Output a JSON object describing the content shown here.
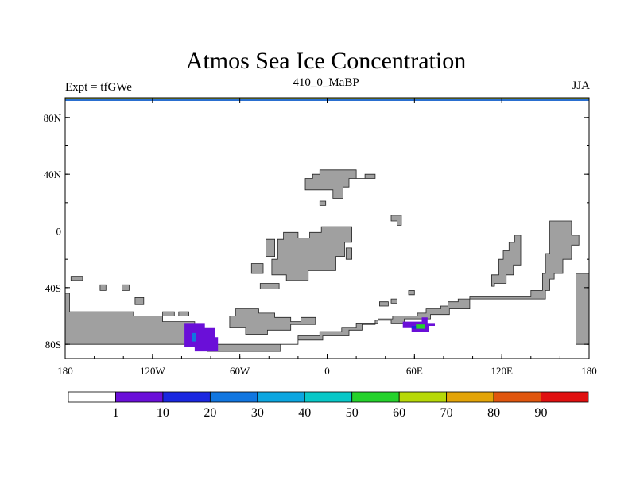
{
  "chart_data": {
    "type": "heatmap",
    "title": "Atmos Sea Ice Concentration",
    "left_label": "Expt = tfGWe",
    "center_label": "410_0_MaBP",
    "right_label": "JJA",
    "x_axis": {
      "range": [
        -180,
        180
      ],
      "ticks": [
        {
          "value": -180,
          "label": "180"
        },
        {
          "value": -120,
          "label": "120W"
        },
        {
          "value": -60,
          "label": "60W"
        },
        {
          "value": 0,
          "label": "0"
        },
        {
          "value": 60,
          "label": "60E"
        },
        {
          "value": 120,
          "label": "120E"
        },
        {
          "value": 180,
          "label": "180"
        }
      ]
    },
    "y_axis": {
      "range": [
        -90,
        90
      ],
      "ticks": [
        {
          "value": 80,
          "label": "80N"
        },
        {
          "value": 40,
          "label": "40N"
        },
        {
          "value": 0,
          "label": "0"
        },
        {
          "value": -40,
          "label": "40S"
        },
        {
          "value": -80,
          "label": "80S"
        }
      ]
    },
    "land_color": "#a0a0a0",
    "land": [
      {
        "name": "south-landmass",
        "coords": [
          [
            -180,
            -44
          ],
          [
            -177,
            -44
          ],
          [
            -177,
            -57
          ],
          [
            -133,
            -57
          ],
          [
            -133,
            -60
          ],
          [
            -113,
            -60
          ],
          [
            -113,
            -64
          ],
          [
            -91,
            -64
          ],
          [
            -91,
            -82
          ],
          [
            -82,
            -82
          ],
          [
            -82,
            -85
          ],
          [
            -32,
            -85
          ],
          [
            -32,
            -80
          ],
          [
            -20,
            -80
          ],
          [
            -20,
            -77
          ],
          [
            -3,
            -77
          ],
          [
            -3,
            -74
          ],
          [
            15,
            -74
          ],
          [
            15,
            -70
          ],
          [
            24,
            -70
          ],
          [
            24,
            -66
          ],
          [
            33,
            -66
          ],
          [
            33,
            -63
          ],
          [
            44,
            -63
          ],
          [
            44,
            -65
          ],
          [
            53,
            -65
          ],
          [
            53,
            -62
          ],
          [
            71,
            -62
          ],
          [
            71,
            -59
          ],
          [
            84,
            -59
          ],
          [
            84,
            -55
          ],
          [
            98,
            -55
          ],
          [
            98,
            -48
          ],
          [
            150,
            -48
          ],
          [
            150,
            -42
          ],
          [
            153,
            -42
          ],
          [
            153,
            -34
          ],
          [
            156,
            -34
          ],
          [
            156,
            -30
          ],
          [
            162,
            -30
          ],
          [
            162,
            -20
          ],
          [
            168,
            -20
          ],
          [
            168,
            -10
          ],
          [
            173,
            -10
          ],
          [
            173,
            -3
          ],
          [
            168,
            -3
          ],
          [
            168,
            7
          ],
          [
            153,
            7
          ],
          [
            153,
            -16
          ],
          [
            150,
            -16
          ],
          [
            150,
            -30
          ],
          [
            148,
            -30
          ],
          [
            148,
            -42
          ],
          [
            140,
            -42
          ],
          [
            140,
            -46
          ],
          [
            98,
            -46
          ],
          [
            98,
            -48
          ],
          [
            90,
            -48
          ],
          [
            90,
            -50
          ],
          [
            83,
            -50
          ],
          [
            83,
            -53
          ],
          [
            78,
            -53
          ],
          [
            78,
            -55
          ],
          [
            68,
            -55
          ],
          [
            68,
            -58
          ],
          [
            62,
            -58
          ],
          [
            62,
            -60
          ],
          [
            45,
            -60
          ],
          [
            45,
            -62
          ],
          [
            35,
            -62
          ],
          [
            35,
            -65
          ],
          [
            20,
            -65
          ],
          [
            20,
            -68
          ],
          [
            10,
            -68
          ],
          [
            10,
            -71
          ],
          [
            -5,
            -71
          ],
          [
            -5,
            -74
          ],
          [
            -20,
            -74
          ],
          [
            -20,
            -80
          ],
          [
            -180,
            -80
          ]
        ]
      },
      {
        "name": "south-landmass-east-lobe",
        "coords": [
          [
            171,
            -30
          ],
          [
            180,
            -30
          ],
          [
            180,
            -80
          ],
          [
            171,
            -80
          ]
        ]
      },
      {
        "name": "southwest-ridge",
        "coords": [
          [
            113,
            -31
          ],
          [
            118,
            -31
          ],
          [
            118,
            -20
          ],
          [
            121,
            -20
          ],
          [
            121,
            -14
          ],
          [
            125,
            -14
          ],
          [
            125,
            -8
          ],
          [
            129,
            -8
          ],
          [
            129,
            -3
          ],
          [
            133,
            -3
          ],
          [
            133,
            -24
          ],
          [
            128,
            -24
          ],
          [
            128,
            -31
          ],
          [
            123,
            -31
          ],
          [
            123,
            -37
          ],
          [
            115,
            -37
          ],
          [
            115,
            -39
          ],
          [
            113,
            -39
          ]
        ]
      },
      {
        "name": "south-island-center",
        "coords": [
          [
            -63,
            -55
          ],
          [
            -47,
            -55
          ],
          [
            -47,
            -58
          ],
          [
            -36,
            -58
          ],
          [
            -36,
            -61
          ],
          [
            -25,
            -61
          ],
          [
            -25,
            -64
          ],
          [
            -18,
            -64
          ],
          [
            -18,
            -61
          ],
          [
            -8,
            -61
          ],
          [
            -8,
            -66
          ],
          [
            -25,
            -66
          ],
          [
            -25,
            -70
          ],
          [
            -41,
            -70
          ],
          [
            -41,
            -73
          ],
          [
            -56,
            -73
          ],
          [
            -56,
            -68
          ],
          [
            -67,
            -68
          ],
          [
            -67,
            -60
          ],
          [
            -63,
            -60
          ]
        ]
      },
      {
        "name": "main-island",
        "coords": [
          [
            -30,
            -1
          ],
          [
            -20,
            -1
          ],
          [
            -20,
            -5
          ],
          [
            -12,
            -5
          ],
          [
            -12,
            -1
          ],
          [
            -4,
            -1
          ],
          [
            -4,
            3
          ],
          [
            17,
            3
          ],
          [
            17,
            -8
          ],
          [
            12,
            -8
          ],
          [
            12,
            -18
          ],
          [
            6,
            -18
          ],
          [
            6,
            -28
          ],
          [
            -13,
            -28
          ],
          [
            -13,
            -35
          ],
          [
            -28,
            -35
          ],
          [
            -28,
            -31
          ],
          [
            -38,
            -31
          ],
          [
            -38,
            -20
          ],
          [
            -34,
            -20
          ],
          [
            -34,
            -6
          ],
          [
            -30,
            -6
          ]
        ]
      },
      {
        "name": "main-island-notch",
        "coords": [
          [
            13,
            -12
          ],
          [
            17,
            -12
          ],
          [
            17,
            -20
          ],
          [
            13,
            -20
          ]
        ]
      },
      {
        "name": "northern-island",
        "coords": [
          [
            -15,
            37
          ],
          [
            -10,
            37
          ],
          [
            -10,
            40
          ],
          [
            -5,
            40
          ],
          [
            -5,
            43
          ],
          [
            20,
            43
          ],
          [
            20,
            37
          ],
          [
            26,
            37
          ],
          [
            26,
            40
          ],
          [
            33,
            40
          ],
          [
            33,
            37
          ],
          [
            15,
            37
          ],
          [
            15,
            31
          ],
          [
            11,
            31
          ],
          [
            11,
            23
          ],
          [
            4,
            23
          ],
          [
            4,
            29
          ],
          [
            -15,
            29
          ]
        ]
      },
      {
        "name": "north-dot",
        "coords": [
          [
            -5,
            21
          ],
          [
            -1,
            21
          ],
          [
            -1,
            18
          ],
          [
            -5,
            18
          ]
        ]
      },
      {
        "name": "mid-small-east",
        "coords": [
          [
            44,
            11
          ],
          [
            51,
            11
          ],
          [
            51,
            4
          ],
          [
            48,
            4
          ],
          [
            48,
            7
          ],
          [
            44,
            7
          ]
        ]
      },
      {
        "name": "mid-small-west",
        "coords": [
          [
            -42,
            -6
          ],
          [
            -36,
            -6
          ],
          [
            -36,
            -18
          ],
          [
            -42,
            -18
          ]
        ]
      },
      {
        "name": "mid-ridge-west",
        "coords": [
          [
            -52,
            -23
          ],
          [
            -44,
            -23
          ],
          [
            -44,
            -30
          ],
          [
            -52,
            -30
          ]
        ]
      },
      {
        "name": "mid-ridge-west-2",
        "coords": [
          [
            -46,
            -37
          ],
          [
            -33,
            -37
          ],
          [
            -33,
            -41
          ],
          [
            -46,
            -41
          ]
        ]
      },
      {
        "name": "small-west-1",
        "coords": [
          [
            -176,
            -32
          ],
          [
            -168,
            -32
          ],
          [
            -168,
            -35
          ],
          [
            -176,
            -35
          ]
        ]
      },
      {
        "name": "small-west-2",
        "coords": [
          [
            -156,
            -38
          ],
          [
            -152,
            -38
          ],
          [
            -152,
            -42
          ],
          [
            -156,
            -42
          ]
        ]
      },
      {
        "name": "small-west-3",
        "coords": [
          [
            -141,
            -38
          ],
          [
            -136,
            -38
          ],
          [
            -136,
            -42
          ],
          [
            -141,
            -42
          ]
        ]
      },
      {
        "name": "small-west-4",
        "coords": [
          [
            -132,
            -47
          ],
          [
            -126,
            -47
          ],
          [
            -126,
            -52
          ],
          [
            -132,
            -52
          ]
        ]
      },
      {
        "name": "small-west-5",
        "coords": [
          [
            -113,
            -57
          ],
          [
            -105,
            -57
          ],
          [
            -105,
            -60
          ],
          [
            -113,
            -60
          ]
        ]
      },
      {
        "name": "small-west-6",
        "coords": [
          [
            -102,
            -57
          ],
          [
            -95,
            -57
          ],
          [
            -95,
            -60
          ],
          [
            -102,
            -60
          ]
        ]
      },
      {
        "name": "small-east-1",
        "coords": [
          [
            36,
            -50
          ],
          [
            42,
            -50
          ],
          [
            42,
            -53
          ],
          [
            36,
            -53
          ]
        ]
      },
      {
        "name": "small-east-2",
        "coords": [
          [
            44,
            -48
          ],
          [
            48,
            -48
          ],
          [
            48,
            -51
          ],
          [
            44,
            -51
          ]
        ]
      },
      {
        "name": "small-east-3",
        "coords": [
          [
            56,
            -42
          ],
          [
            60,
            -42
          ],
          [
            60,
            -45
          ],
          [
            56,
            -45
          ]
        ]
      }
    ],
    "ice_regions": [
      {
        "name": "ice-west-base",
        "value": 5,
        "coords": [
          [
            -98,
            -65
          ],
          [
            -84,
            -65
          ],
          [
            -84,
            -68
          ],
          [
            -77,
            -68
          ],
          [
            -77,
            -75
          ],
          [
            -75,
            -75
          ],
          [
            -75,
            -85
          ],
          [
            -91,
            -85
          ],
          [
            -91,
            -82
          ],
          [
            -98,
            -82
          ]
        ]
      },
      {
        "name": "ice-west-core",
        "value": 25,
        "coords": [
          [
            -93,
            -72
          ],
          [
            -90,
            -72
          ],
          [
            -90,
            -78
          ],
          [
            -93,
            -78
          ]
        ]
      },
      {
        "name": "ice-east-base",
        "value": 5,
        "coords": [
          [
            52,
            -64
          ],
          [
            65,
            -64
          ],
          [
            65,
            -61
          ],
          [
            69,
            -61
          ],
          [
            69,
            -65
          ],
          [
            74,
            -65
          ],
          [
            74,
            -67
          ],
          [
            70,
            -67
          ],
          [
            70,
            -71
          ],
          [
            58,
            -71
          ],
          [
            58,
            -68
          ],
          [
            52,
            -68
          ]
        ]
      },
      {
        "name": "ice-east-core",
        "value": 55,
        "coords": [
          [
            61,
            -66
          ],
          [
            67,
            -66
          ],
          [
            67,
            -69
          ],
          [
            61,
            -69
          ]
        ]
      },
      {
        "name": "ice-east-mid",
        "value": 15,
        "coords": [
          [
            58,
            -67
          ],
          [
            61,
            -67
          ],
          [
            61,
            -69
          ],
          [
            58,
            -69
          ]
        ]
      }
    ],
    "colorbar": {
      "colors": [
        "#ffffff",
        "#6a0fd8",
        "#1a27e0",
        "#1176e0",
        "#0ca6e0",
        "#08c8c8",
        "#25d22c",
        "#b7d808",
        "#e3a408",
        "#e0560e",
        "#e01010"
      ],
      "labels": [
        "1",
        "10",
        "20",
        "30",
        "40",
        "50",
        "60",
        "70",
        "80",
        "90"
      ]
    }
  }
}
